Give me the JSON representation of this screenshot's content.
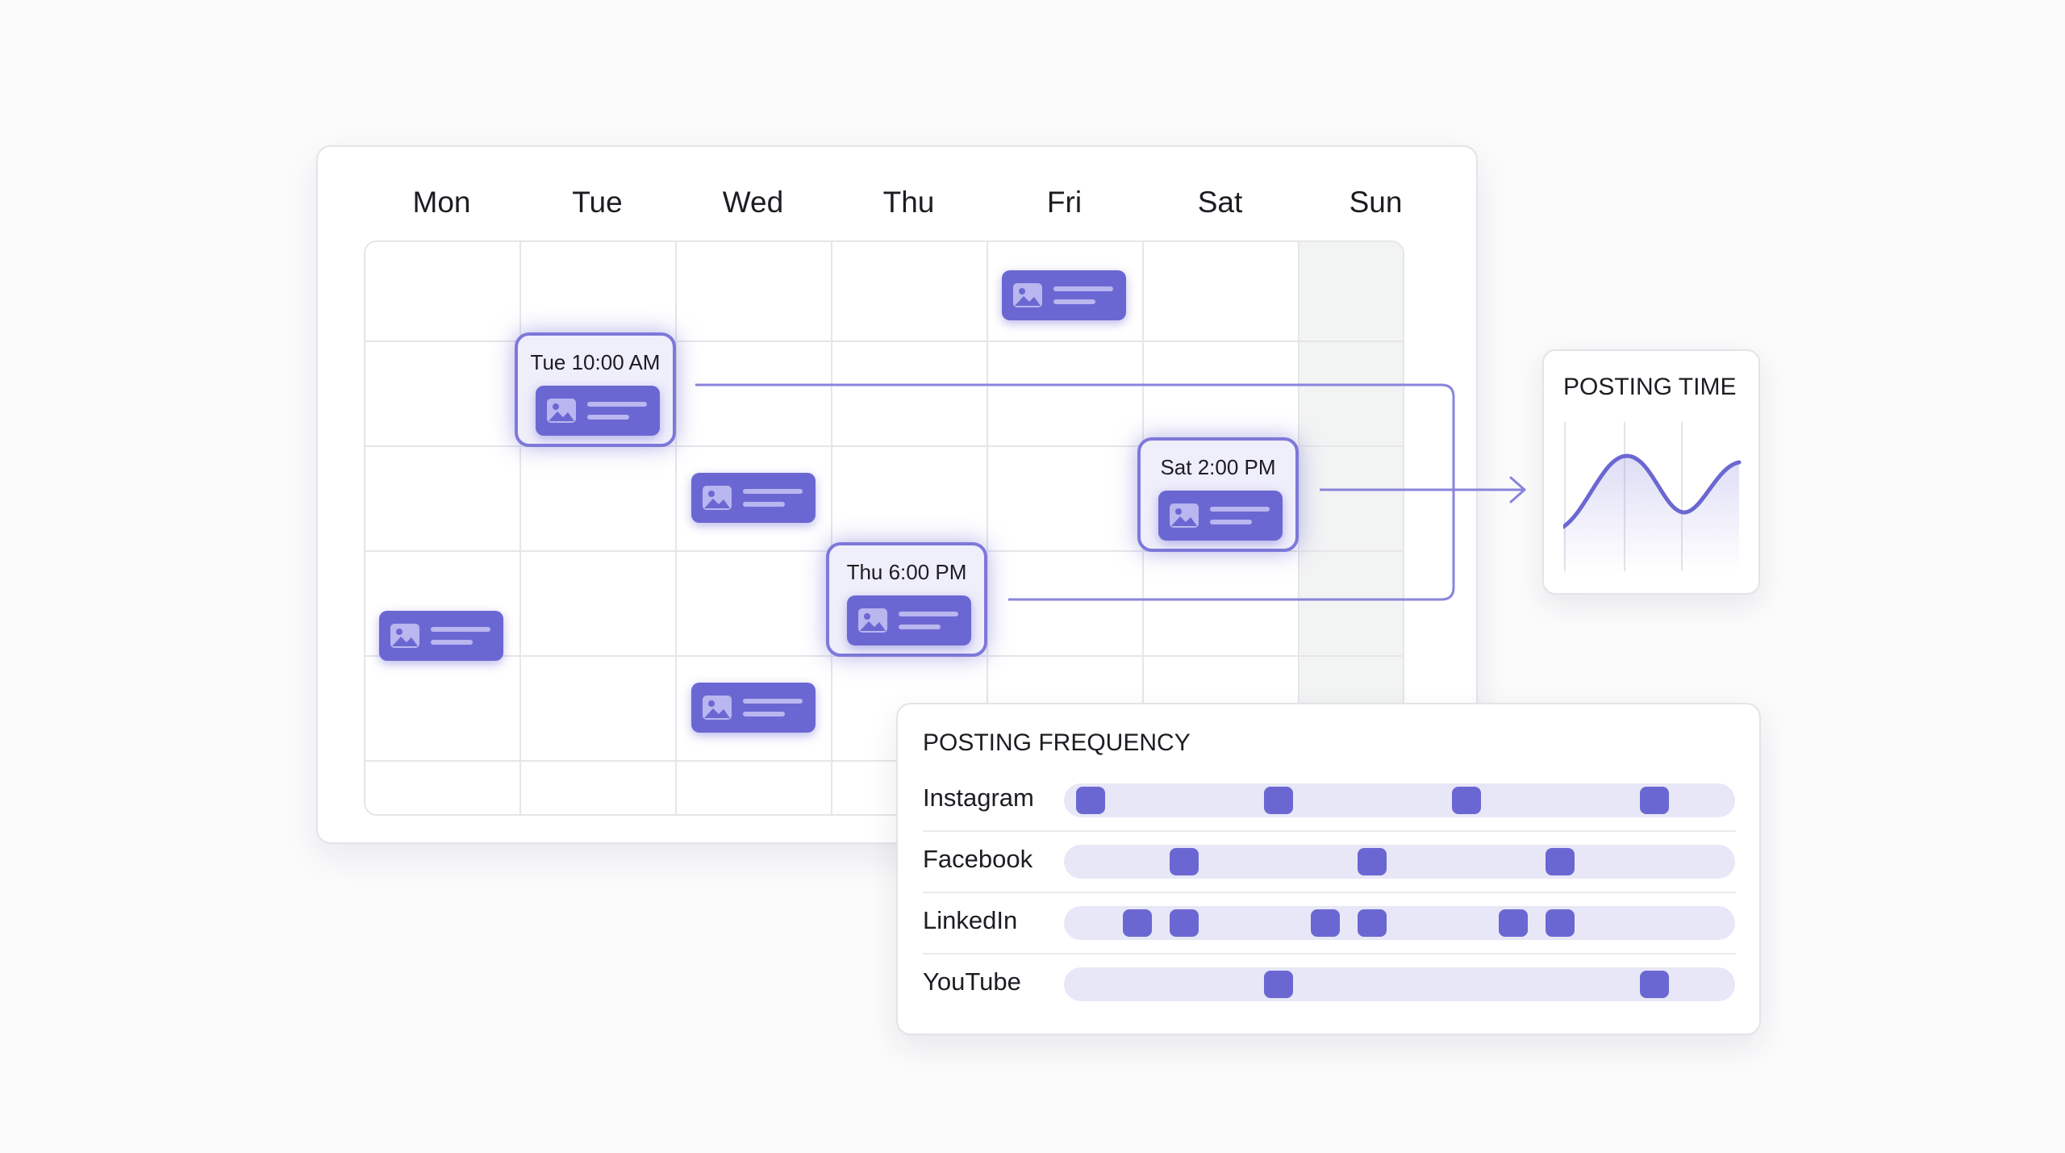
{
  "calendar": {
    "days": [
      "Mon",
      "Tue",
      "Wed",
      "Thu",
      "Fri",
      "Sat",
      "Sun"
    ],
    "scheduled_times": [
      {
        "day": "Tue",
        "label": "Tue 10:00 AM"
      },
      {
        "day": "Thu",
        "label": "Thu 6:00 PM"
      },
      {
        "day": "Sat",
        "label": "Sat 2:00 PM"
      }
    ],
    "highlight_color": "#6b67d2",
    "icons": [
      "image-icon"
    ]
  },
  "posting_time": {
    "title": "POSTING TIME"
  },
  "posting_frequency": {
    "title": "POSTING FREQUENCY",
    "rows": [
      {
        "platform": "Instagram",
        "positions": [
          0.03,
          0.31,
          0.59,
          0.87
        ]
      },
      {
        "platform": "Facebook",
        "positions": [
          0.17,
          0.45,
          0.73
        ]
      },
      {
        "platform": "LinkedIn",
        "positions": [
          0.1,
          0.17,
          0.38,
          0.45,
          0.66,
          0.73
        ]
      },
      {
        "platform": "YouTube",
        "positions": [
          0.31,
          0.87
        ]
      }
    ]
  }
}
